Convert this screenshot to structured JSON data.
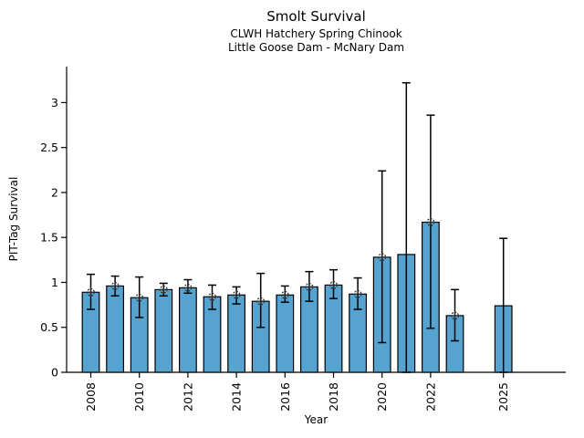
{
  "chart_data": {
    "type": "bar",
    "title": "Smolt Survival",
    "subtitle_lines": [
      "CLWH Hatchery Spring Chinook",
      "Little Goose Dam - McNary Dam"
    ],
    "xlabel": "Year",
    "ylabel": "PIT-Tag Survival",
    "ylim": [
      0,
      3.4
    ],
    "yticks": [
      0,
      0.5,
      1,
      1.5,
      2,
      2.5,
      3
    ],
    "ytick_labels": [
      "0",
      "0.5",
      "1",
      "1.5",
      "2",
      "2.5",
      "3"
    ],
    "xtick_labels": [
      "2008",
      "2010",
      "2012",
      "2014",
      "2016",
      "2018",
      "2020",
      "2022",
      "2025"
    ],
    "x_year_range": [
      2008,
      2025
    ],
    "missing_years": [
      2024
    ],
    "grid": false,
    "legend": false,
    "bar_color": "#56A3CF",
    "bar_edge_color": "#000000",
    "errorbar_color": "#000000",
    "series": [
      {
        "name": "PIT-Tag Survival",
        "points": [
          {
            "year": 2008,
            "value": 0.89,
            "err_lo": 0.7,
            "err_hi": 1.09,
            "marker": true
          },
          {
            "year": 2009,
            "value": 0.96,
            "err_lo": 0.85,
            "err_hi": 1.07,
            "marker": true
          },
          {
            "year": 2010,
            "value": 0.83,
            "err_lo": 0.61,
            "err_hi": 1.06,
            "marker": true
          },
          {
            "year": 2011,
            "value": 0.92,
            "err_lo": 0.85,
            "err_hi": 0.99,
            "marker": true
          },
          {
            "year": 2012,
            "value": 0.94,
            "err_lo": 0.88,
            "err_hi": 1.03,
            "marker": true
          },
          {
            "year": 2013,
            "value": 0.84,
            "err_lo": 0.7,
            "err_hi": 0.97,
            "marker": true
          },
          {
            "year": 2014,
            "value": 0.86,
            "err_lo": 0.76,
            "err_hi": 0.95,
            "marker": true
          },
          {
            "year": 2015,
            "value": 0.79,
            "err_lo": 0.5,
            "err_hi": 1.1,
            "marker": true
          },
          {
            "year": 2016,
            "value": 0.86,
            "err_lo": 0.78,
            "err_hi": 0.96,
            "marker": true
          },
          {
            "year": 2017,
            "value": 0.95,
            "err_lo": 0.79,
            "err_hi": 1.12,
            "marker": true
          },
          {
            "year": 2018,
            "value": 0.97,
            "err_lo": 0.82,
            "err_hi": 1.14,
            "marker": true
          },
          {
            "year": 2019,
            "value": 0.87,
            "err_lo": 0.7,
            "err_hi": 1.05,
            "marker": true
          },
          {
            "year": 2020,
            "value": 1.28,
            "err_lo": 0.33,
            "err_hi": 2.24,
            "marker": true
          },
          {
            "year": 2021,
            "value": 1.31,
            "err_lo": 0.0,
            "err_hi": 3.22,
            "marker": false
          },
          {
            "year": 2022,
            "value": 1.67,
            "err_lo": 0.49,
            "err_hi": 2.86,
            "marker": true
          },
          {
            "year": 2023,
            "value": 0.63,
            "err_lo": 0.35,
            "err_hi": 0.92,
            "marker": true
          },
          {
            "year": 2025,
            "value": 0.74,
            "err_lo": 0.0,
            "err_hi": 1.49,
            "marker": false
          }
        ]
      }
    ]
  }
}
